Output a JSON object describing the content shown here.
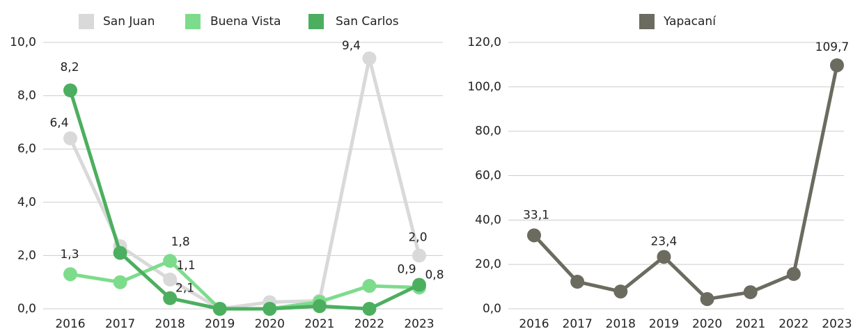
{
  "chart_data": [
    {
      "type": "line",
      "categories": [
        "2016",
        "2017",
        "2018",
        "2019",
        "2020",
        "2021",
        "2022",
        "2023"
      ],
      "ylim": [
        0,
        10
      ],
      "yticks": [
        {
          "value": 0,
          "label": "0,0"
        },
        {
          "value": 2,
          "label": "2,0"
        },
        {
          "value": 4,
          "label": "4,0"
        },
        {
          "value": 6,
          "label": "6,0"
        },
        {
          "value": 8,
          "label": "8,0"
        },
        {
          "value": 10,
          "label": "10,0"
        }
      ],
      "grid": true,
      "legend": "top",
      "series": [
        {
          "name": "San Juan",
          "color": "#d9d9d9",
          "values": [
            6.4,
            2.35,
            1.1,
            0,
            0.25,
            0.3,
            9.4,
            2.0
          ],
          "value_labels": [
            "6,4",
            null,
            "1,1",
            null,
            null,
            null,
            "9,4",
            "2,0"
          ]
        },
        {
          "name": "Buena Vista",
          "color": "#7ddc8c",
          "values": [
            1.3,
            1.0,
            1.8,
            0,
            0,
            0.26,
            0.86,
            0.8
          ],
          "value_labels": [
            "1,3",
            null,
            "1,8",
            null,
            null,
            null,
            null,
            "0,8"
          ]
        },
        {
          "name": "San Carlos",
          "color": "#4caf5f",
          "values": [
            8.2,
            2.1,
            0.4,
            0,
            0,
            0.1,
            0,
            0.9
          ],
          "value_labels": [
            "8,2",
            "2,1",
            null,
            null,
            null,
            null,
            null,
            "0,9"
          ]
        }
      ]
    },
    {
      "type": "line",
      "categories": [
        "2016",
        "2017",
        "2018",
        "2019",
        "2020",
        "2021",
        "2022",
        "2023"
      ],
      "ylim": [
        0,
        120
      ],
      "yticks": [
        {
          "value": 0,
          "label": "0,0"
        },
        {
          "value": 20,
          "label": "20,0"
        },
        {
          "value": 40,
          "label": "40,0"
        },
        {
          "value": 60,
          "label": "60,0"
        },
        {
          "value": 80,
          "label": "80,0"
        },
        {
          "value": 100,
          "label": "100,0"
        },
        {
          "value": 120,
          "label": "120,0"
        }
      ],
      "grid": true,
      "legend": "top",
      "series": [
        {
          "name": "Yapacaní",
          "color": "#6b6b60",
          "values": [
            33.1,
            12.2,
            7.8,
            23.4,
            4.4,
            7.5,
            15.7,
            109.7
          ],
          "value_labels": [
            "33,1",
            null,
            null,
            "23,4",
            null,
            null,
            null,
            "109,7"
          ]
        }
      ]
    }
  ]
}
